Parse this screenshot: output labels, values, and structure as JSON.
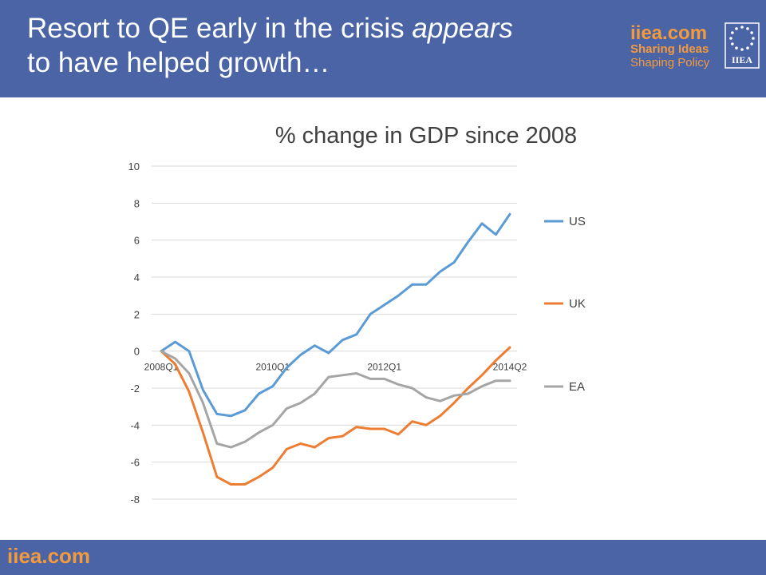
{
  "slide": {
    "title_part1": "Resort to QE early in the crisis",
    "title_italic": "appears",
    "title_part2": "to have helped growth…",
    "logo_name": "iiea.com",
    "logo_tagline1": "Sharing Ideas",
    "logo_tagline2": "Shaping Policy",
    "logo_emblem_text": "IIEA",
    "footer_logo": "iiea.com"
  },
  "colors": {
    "header": "#4a64a6",
    "brand_orange": "#f39a3d",
    "US": "#5b9bd5",
    "UK": "#ed7d31",
    "EA": "#a5a5a5"
  },
  "chart_data": {
    "type": "line",
    "title": "% change in GDP since 2008",
    "xlabel": "",
    "ylabel": "",
    "ylim": [
      -8,
      10
    ],
    "yticks": [
      10,
      8,
      6,
      4,
      2,
      0,
      -2,
      -4,
      -6,
      -8
    ],
    "x": [
      "2008Q1",
      "2008Q2",
      "2008Q3",
      "2008Q4",
      "2009Q1",
      "2009Q2",
      "2009Q3",
      "2009Q4",
      "2010Q1",
      "2010Q2",
      "2010Q3",
      "2010Q4",
      "2011Q1",
      "2011Q2",
      "2011Q3",
      "2011Q4",
      "2012Q1",
      "2012Q2",
      "2012Q3",
      "2012Q4",
      "2013Q1",
      "2013Q2",
      "2013Q3",
      "2013Q4",
      "2014Q1",
      "2014Q2"
    ],
    "xtick_labels": [
      {
        "index": 0,
        "label": "2008Q1"
      },
      {
        "index": 8,
        "label": "2010Q1"
      },
      {
        "index": 16,
        "label": "2012Q1"
      },
      {
        "index": 25,
        "label": "2014Q2"
      }
    ],
    "grid": true,
    "legend_position": "right",
    "series": [
      {
        "name": "US",
        "values": [
          0,
          0.5,
          0,
          -2.1,
          -3.4,
          -3.5,
          -3.2,
          -2.3,
          -1.9,
          -0.9,
          -0.2,
          0.3,
          -0.1,
          0.6,
          0.9,
          2.0,
          2.5,
          3.0,
          3.6,
          3.6,
          4.3,
          4.8,
          5.9,
          6.9,
          6.3,
          7.4
        ]
      },
      {
        "name": "UK",
        "values": [
          0,
          -0.7,
          -2.2,
          -4.4,
          -6.8,
          -7.2,
          -7.2,
          -6.8,
          -6.3,
          -5.3,
          -5.0,
          -5.2,
          -4.7,
          -4.6,
          -4.1,
          -4.2,
          -4.2,
          -4.5,
          -3.8,
          -4.0,
          -3.5,
          -2.8,
          -2.0,
          -1.3,
          -0.5,
          0.2
        ]
      },
      {
        "name": "EA",
        "values": [
          0,
          -0.4,
          -1.2,
          -2.8,
          -5.0,
          -5.2,
          -4.9,
          -4.4,
          -4.0,
          -3.1,
          -2.8,
          -2.3,
          -1.4,
          -1.3,
          -1.2,
          -1.5,
          -1.5,
          -1.8,
          -2.0,
          -2.5,
          -2.7,
          -2.4,
          -2.3,
          -1.9,
          -1.6,
          -1.6
        ]
      }
    ]
  }
}
